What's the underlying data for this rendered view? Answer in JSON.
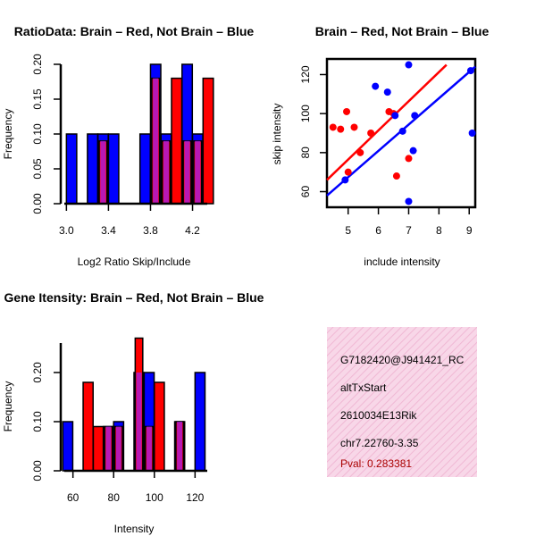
{
  "colors": {
    "red": "#ff0000",
    "blue": "#0000ff",
    "purple": "#a020f0",
    "panel_bg": "#f8d7e8",
    "panel_hatch": "#f0b8d4",
    "pval": "#aa0000"
  },
  "chart_data": [
    {
      "id": "ratio-hist",
      "type": "bar",
      "title": "RatioData: Brain – Red, Not Brain – Blue",
      "xlabel": "Log2 Ratio Skip/Include",
      "ylabel": "Frequency",
      "xlim": [
        2.98,
        4.34
      ],
      "ylim": [
        0,
        0.2
      ],
      "xticks": [
        "3.0",
        "3.4",
        "3.8",
        "4.2"
      ],
      "yticks": [
        "0.00",
        "0.05",
        "0.10",
        "0.15",
        "0.20"
      ],
      "bin_width": 0.1,
      "bin_starts": [
        3.0,
        3.1,
        3.2,
        3.3,
        3.4,
        3.5,
        3.6,
        3.7,
        3.8,
        3.9,
        4.0,
        4.1,
        4.2,
        4.3
      ],
      "series": [
        {
          "name": "Not Brain",
          "color": "blue",
          "values": [
            0.1,
            0.0,
            0.1,
            0.1,
            0.1,
            0.0,
            0.0,
            0.1,
            0.2,
            0.1,
            0.0,
            0.2,
            0.1,
            0.0
          ]
        },
        {
          "name": "Brain",
          "color": "red",
          "values": [
            0.0,
            0.0,
            0.0,
            0.09,
            0.0,
            0.0,
            0.0,
            0.0,
            0.18,
            0.09,
            0.18,
            0.09,
            0.09,
            0.18
          ]
        }
      ]
    },
    {
      "id": "scatter",
      "type": "scatter",
      "title": "Brain – Red, Not Brain – Blue",
      "xlabel": "include intensity",
      "ylabel": "skip intensity",
      "xlim": [
        4.3,
        9.2
      ],
      "ylim": [
        52,
        128
      ],
      "xticks": [
        "5",
        "6",
        "7",
        "8",
        "9"
      ],
      "yticks": [
        "60",
        "80",
        "100",
        "120"
      ],
      "series": [
        {
          "name": "Brain",
          "color": "red",
          "points": [
            [
              4.5,
              93
            ],
            [
              4.75,
              92
            ],
            [
              4.95,
              101
            ],
            [
              5.0,
              70
            ],
            [
              5.2,
              93
            ],
            [
              5.4,
              80
            ],
            [
              5.75,
              90
            ],
            [
              6.35,
              101
            ],
            [
              6.5,
              100
            ],
            [
              6.6,
              68
            ],
            [
              7.0,
              77
            ]
          ],
          "fit": [
            [
              4.3,
              66
            ],
            [
              8.25,
              125
            ]
          ]
        },
        {
          "name": "Not Brain",
          "color": "blue",
          "points": [
            [
              4.9,
              66
            ],
            [
              5.9,
              114
            ],
            [
              6.3,
              111
            ],
            [
              6.55,
              99
            ],
            [
              6.8,
              91
            ],
            [
              7.0,
              125
            ],
            [
              7.0,
              55
            ],
            [
              7.2,
              99
            ],
            [
              7.15,
              81
            ],
            [
              9.05,
              122
            ],
            [
              9.1,
              90
            ]
          ],
          "fit": [
            [
              4.3,
              58
            ],
            [
              9.2,
              124
            ]
          ]
        }
      ]
    },
    {
      "id": "intensity-hist",
      "type": "bar",
      "title": "Gene Itensity: Brain – Red, Not Brain – Blue",
      "xlabel": "Intensity",
      "ylabel": "Frequency",
      "xlim": [
        54,
        126
      ],
      "ylim": [
        0,
        0.26
      ],
      "xticks": [
        "60",
        "80",
        "100",
        "120"
      ],
      "yticks": [
        "0.00",
        "0.10",
        "0.20"
      ],
      "bin_width": 5,
      "bin_starts": [
        55,
        60,
        65,
        70,
        75,
        80,
        85,
        90,
        95,
        100,
        105,
        110,
        115,
        120
      ],
      "series": [
        {
          "name": "Not Brain",
          "color": "blue",
          "values": [
            0.1,
            0.0,
            0.0,
            0.0,
            0.09,
            0.1,
            0.0,
            0.2,
            0.2,
            0.0,
            0.0,
            0.1,
            0.0,
            0.2
          ]
        },
        {
          "name": "Brain",
          "color": "red",
          "values": [
            0.0,
            0.0,
            0.18,
            0.09,
            0.09,
            0.09,
            0.0,
            0.27,
            0.09,
            0.18,
            0.0,
            0.1,
            0.0,
            0.0
          ]
        }
      ]
    }
  ],
  "info_panel": {
    "line1": "G7182420@J941421_RC",
    "line2": "altTxStart",
    "line3": "2610034E13Rik",
    "line4": "chr7.22760-3.35",
    "pval": "Pval: 0.283381"
  }
}
